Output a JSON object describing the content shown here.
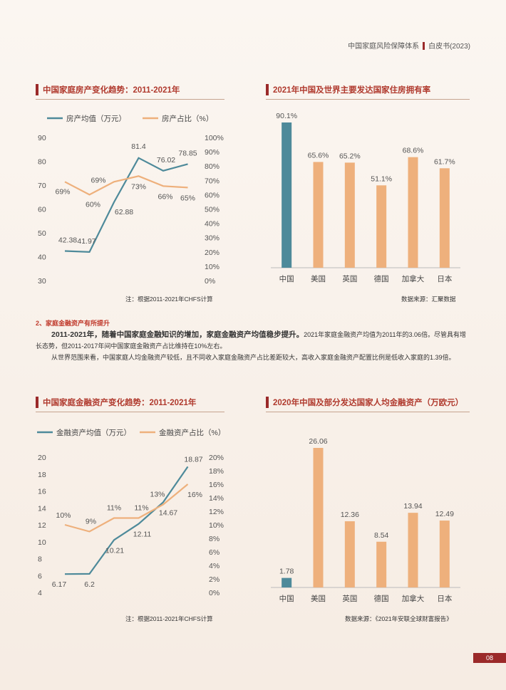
{
  "header": {
    "left": "中国家庭风险保障体系",
    "right": "白皮书(2023)"
  },
  "page_number": "08",
  "sections": {
    "s1_title": "中国家庭房产变化趋势：2011-2021年",
    "s2_title": "2021年中国及世界主要发达国家住房拥有率",
    "s3_title": "中国家庭金融资产变化趋势：2011-2021年",
    "s4_title": "2020年中国及部分发达国家人均金融资产（万欧元）"
  },
  "notes": {
    "c1": "注：根据2011-2021年CHFS计算",
    "c2": "数据来源：汇聚数据",
    "c3": "注：根据2011-2021年CHFS计算",
    "c4": "数据来源：《2021年安联全球财富报告》"
  },
  "text": {
    "subhead": "2、家庭金融资产有所提升",
    "p1_lead": "2011-2021年，随着中国家庭金融知识的增加，家庭金融资产均值稳步提升。",
    "p1_rest": "2021年家庭金融资产均值为2011年的3.06倍。尽管具有增长态势，但2011-2017年间中国家庭金融资产占比维持在10%左右。",
    "p2": "从世界范围来看，中国家庭人均金融资产较低，且不同收入家庭金融资产占比差距较大，高收入家庭金融资产配置比例是低收入家庭的1.39倍。"
  },
  "colors": {
    "teal": "#4e8a9a",
    "orange": "#eeb07c",
    "accent": "#9b2a2a"
  },
  "chart_data": [
    {
      "type": "line",
      "title": "中国家庭房产变化趋势：2011-2021年",
      "series": [
        {
          "name": "房产均值（万元）",
          "axis": "left",
          "values": [
            42.38,
            41.97,
            62.88,
            81.4,
            76.02,
            78.85
          ],
          "labels": [
            "42.38",
            "41.97",
            "62.88",
            "81.4",
            "76.02",
            "78.85"
          ]
        },
        {
          "name": "房产占比（%）",
          "axis": "right",
          "values": [
            69,
            60,
            69,
            73,
            66,
            65
          ],
          "labels": [
            "69%",
            "60%",
            "69%",
            "73%",
            "66%",
            "65%"
          ]
        }
      ],
      "y_left": {
        "min": 30,
        "max": 90,
        "ticks": [
          "30",
          "40",
          "50",
          "60",
          "70",
          "80",
          "90"
        ]
      },
      "y_right": {
        "min": 0,
        "max": 100,
        "ticks": [
          "0%",
          "10%",
          "20%",
          "30%",
          "40%",
          "50%",
          "60%",
          "70%",
          "80%",
          "90%",
          "100%"
        ]
      },
      "legend": "top-left",
      "grid": false
    },
    {
      "type": "bar",
      "title": "2021年中国及世界主要发达国家住房拥有率",
      "categories": [
        "中国",
        "美国",
        "英国",
        "德国",
        "加拿大",
        "日本"
      ],
      "values": [
        90.1,
        65.6,
        65.2,
        51.1,
        68.6,
        61.7
      ],
      "labels": [
        "90.1%",
        "65.6%",
        "65.2%",
        "51.1%",
        "68.6%",
        "61.7%"
      ],
      "ylim": [
        0,
        90.1
      ],
      "grid": false
    },
    {
      "type": "line",
      "title": "中国家庭金融资产变化趋势：2011-2021年",
      "series": [
        {
          "name": "金融资产均值（万元）",
          "axis": "left",
          "values": [
            6.17,
            6.2,
            10.21,
            12.11,
            14.67,
            18.87
          ],
          "labels": [
            "6.17",
            "6.2",
            "10.21",
            "12.11",
            "14.67",
            "18.87"
          ]
        },
        {
          "name": "金融资产占比（%）",
          "axis": "right",
          "values": [
            10,
            9,
            11,
            11,
            13,
            16
          ],
          "labels": [
            "10%",
            "9%",
            "11%",
            "11%",
            "13%",
            "16%"
          ]
        }
      ],
      "y_left": {
        "min": 4,
        "max": 20,
        "ticks": [
          "4",
          "6",
          "8",
          "10",
          "12",
          "14",
          "16",
          "18",
          "20"
        ]
      },
      "y_right": {
        "min": 0,
        "max": 20,
        "ticks": [
          "0%",
          "2%",
          "4%",
          "6%",
          "8%",
          "10%",
          "12%",
          "14%",
          "16%",
          "18%",
          "20%"
        ]
      },
      "legend": "top-left",
      "grid": false
    },
    {
      "type": "bar",
      "title": "2020年中国及部分发达国家人均金融资产（万欧元）",
      "categories": [
        "中国",
        "美国",
        "英国",
        "德国",
        "加拿大",
        "日本"
      ],
      "values": [
        1.78,
        26.06,
        12.36,
        8.54,
        13.94,
        12.49
      ],
      "labels": [
        "1.78",
        "26.06",
        "12.36",
        "8.54",
        "13.94",
        "12.49"
      ],
      "ylim": [
        0,
        26.06
      ],
      "grid": false
    }
  ]
}
